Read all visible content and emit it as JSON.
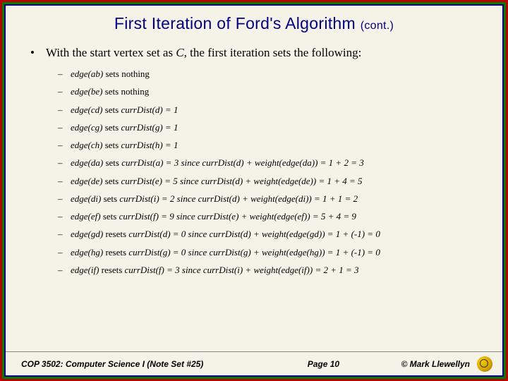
{
  "title_main": "First Iteration of Ford's Algorithm",
  "title_cont": "(cont.)",
  "intro_prefix": "With the start vertex set as ",
  "intro_var": "C",
  "intro_suffix": ", the first iteration sets the following:",
  "items": [
    {
      "edge": "edge(ab)",
      "verb": " sets nothing",
      "rest": ""
    },
    {
      "edge": "edge(be)",
      "verb": " sets nothing",
      "rest": ""
    },
    {
      "edge": "edge(cd)",
      "verb": " sets ",
      "rest": "currDist(d) = 1"
    },
    {
      "edge": "edge(cg)",
      "verb": " sets ",
      "rest": "currDist(g) = 1"
    },
    {
      "edge": "edge(ch)",
      "verb": " sets ",
      "rest": "currDist(h) = 1"
    },
    {
      "edge": "edge(da)",
      "verb": " sets ",
      "rest": "currDist(a) = 3 since currDist(d) + weight(edge(da)) = 1 + 2 = 3"
    },
    {
      "edge": "edge(de)",
      "verb": " sets ",
      "rest": "currDist(e) = 5 since currDist(d) + weight(edge(de)) = 1 + 4 = 5"
    },
    {
      "edge": "edge(di)",
      "verb": " sets ",
      "rest": "currDist(i) = 2 since currDist(d) + weight(edge(di)) = 1 + 1 = 2"
    },
    {
      "edge": "edge(ef)",
      "verb": " sets ",
      "rest": "currDist(f) = 9 since currDist(e) + weight(edge(ef)) = 5 + 4 = 9"
    },
    {
      "edge": "edge(gd)",
      "verb": " resets ",
      "rest": "currDist(d) = 0 since currDist(d) + weight(edge(gd)) = 1 + (-1) = 0"
    },
    {
      "edge": "edge(hg)",
      "verb": " resets ",
      "rest": "currDist(g) = 0 since currDist(g) + weight(edge(hg)) = 1 + (-1) = 0"
    },
    {
      "edge": "edge(if)",
      "verb": " resets ",
      "rest": "currDist(f) = 3 since currDist(i) + weight(edge(if)) = 2 + 1 = 3"
    }
  ],
  "footer_left": "COP 3502: Computer Science I   (Note Set #25)",
  "footer_page": "Page 10",
  "footer_right": "© Mark Llewellyn",
  "colors": {
    "frame_red": "#c00000",
    "frame_green": "#008000",
    "frame_blue": "#000080",
    "background": "#f5f2e8",
    "title": "#000080"
  }
}
